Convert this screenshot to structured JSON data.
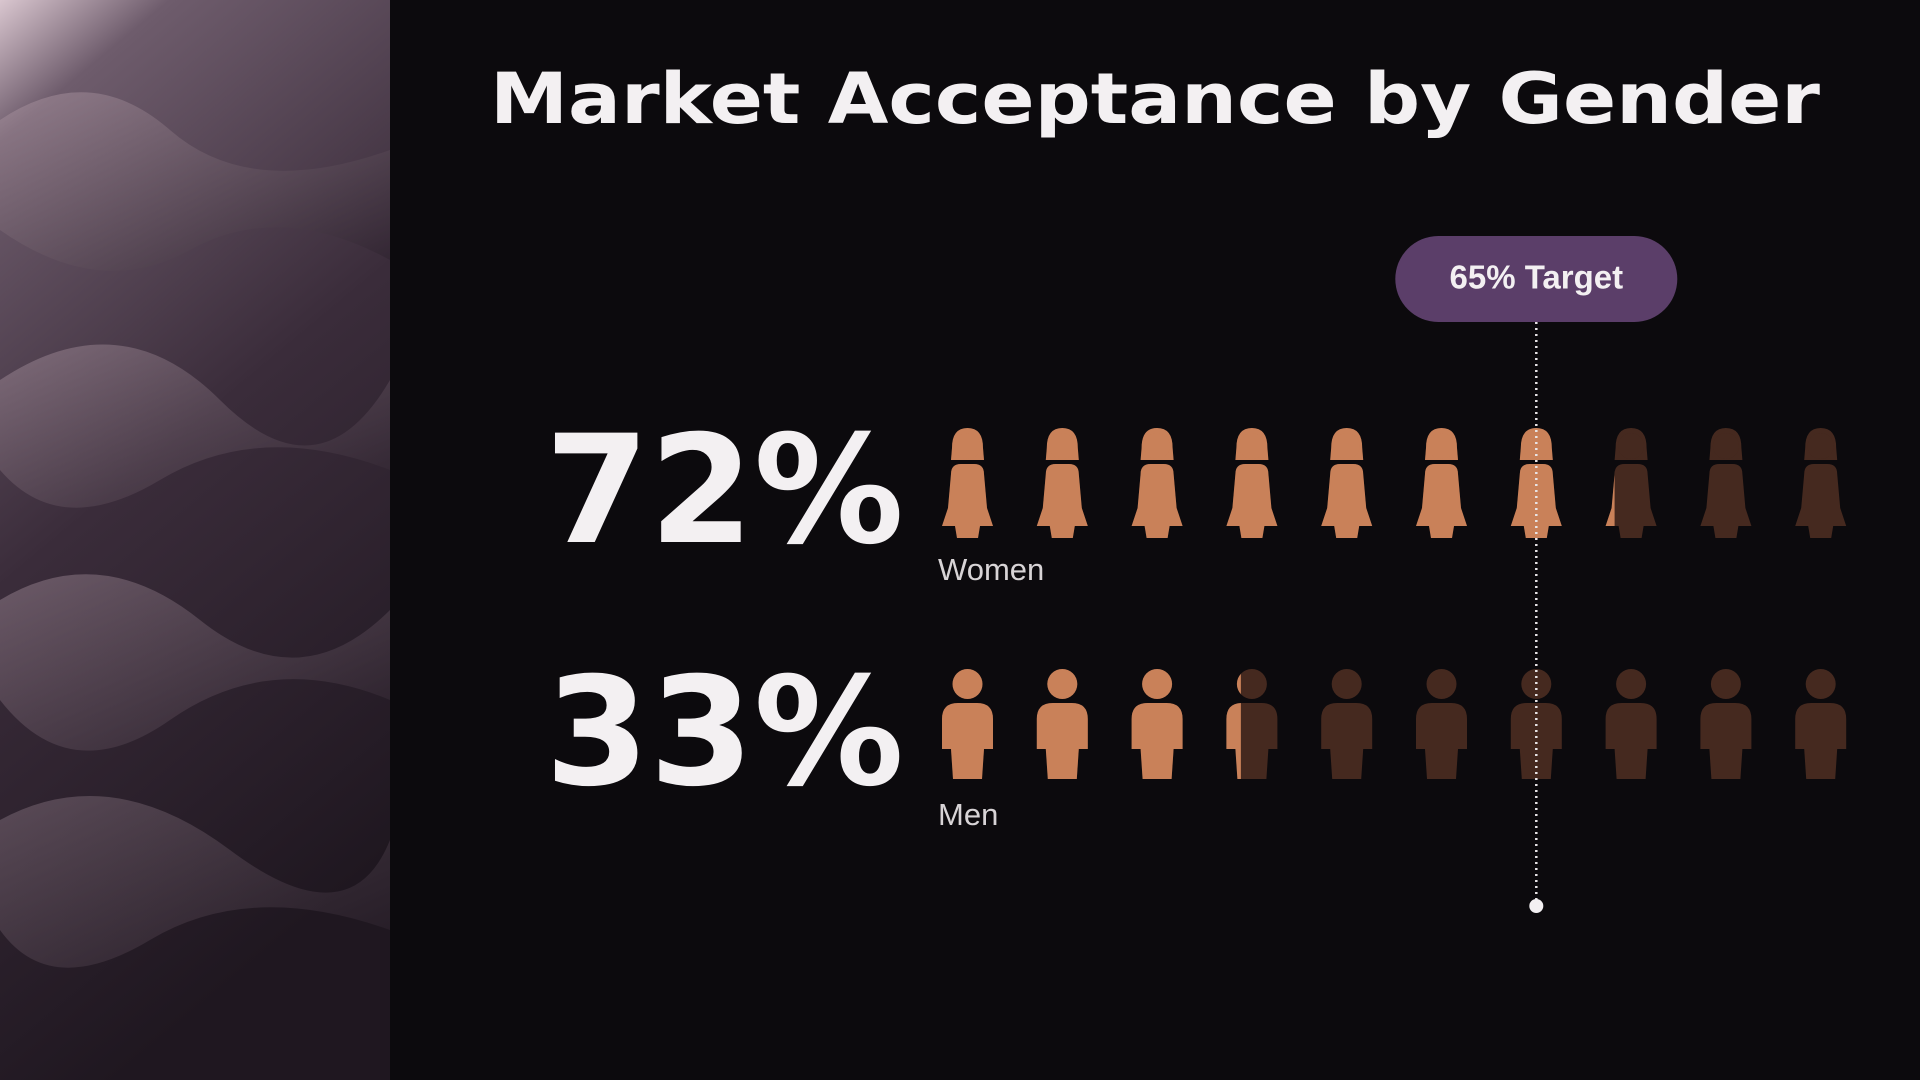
{
  "chart_data": {
    "type": "pictogram",
    "title": "Market Acceptance by Gender",
    "categories": [
      "Women",
      "Men"
    ],
    "values": [
      72,
      33
    ],
    "value_labels": [
      "72%",
      "33%"
    ],
    "color": "#c98159",
    "empty_color": "#45291f",
    "target": 65,
    "target_label": "65% Target",
    "target_color": "#5b3e69"
  }
}
